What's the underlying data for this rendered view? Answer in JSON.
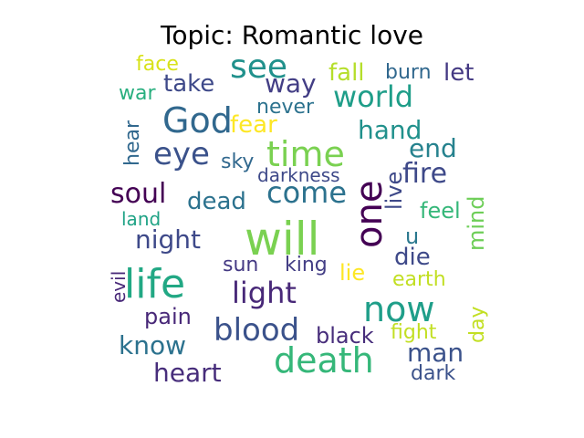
{
  "chart_data": {
    "type": "wordcloud",
    "title": "Topic: Romantic love",
    "words": [
      {
        "text": "will",
        "color": "#7ad151"
      },
      {
        "text": "one",
        "color": "#440154"
      },
      {
        "text": "life",
        "color": "#22a884"
      },
      {
        "text": "now",
        "color": "#1f9e89"
      },
      {
        "text": "death",
        "color": "#35b779"
      },
      {
        "text": "time",
        "color": "#7ad151"
      },
      {
        "text": "God",
        "color": "#31688e"
      },
      {
        "text": "see",
        "color": "#21918c"
      },
      {
        "text": "world",
        "color": "#1f9e89"
      },
      {
        "text": "blood",
        "color": "#3b528b"
      },
      {
        "text": "eye",
        "color": "#3b528b"
      },
      {
        "text": "fire",
        "color": "#3e4989"
      },
      {
        "text": "come",
        "color": "#2c728e"
      },
      {
        "text": "light",
        "color": "#482878"
      },
      {
        "text": "soul",
        "color": "#440154"
      },
      {
        "text": "end",
        "color": "#26828e"
      },
      {
        "text": "way",
        "color": "#433e85"
      },
      {
        "text": "hand",
        "color": "#21918c"
      },
      {
        "text": "night",
        "color": "#3e4989"
      },
      {
        "text": "take",
        "color": "#3e4989"
      },
      {
        "text": "know",
        "color": "#2c728e"
      },
      {
        "text": "heart",
        "color": "#472d7b"
      },
      {
        "text": "man",
        "color": "#3b528b"
      },
      {
        "text": "fall",
        "color": "#b5de2b"
      },
      {
        "text": "fear",
        "color": "#fde725"
      },
      {
        "text": "let",
        "color": "#443983"
      },
      {
        "text": "burn",
        "color": "#31688e"
      },
      {
        "text": "dead",
        "color": "#2c728e"
      },
      {
        "text": "live",
        "color": "#3e4989"
      },
      {
        "text": "mind",
        "color": "#6ece58"
      },
      {
        "text": "u",
        "color": "#2a788e"
      },
      {
        "text": "die",
        "color": "#3e4989"
      },
      {
        "text": "feel",
        "color": "#35b779"
      },
      {
        "text": "pain",
        "color": "#482878"
      },
      {
        "text": "king",
        "color": "#433e85"
      },
      {
        "text": "sun",
        "color": "#443983"
      },
      {
        "text": "lie",
        "color": "#fde725"
      },
      {
        "text": "earth",
        "color": "#c2df23"
      },
      {
        "text": "black",
        "color": "#472d7b"
      },
      {
        "text": "fight",
        "color": "#c2df23"
      },
      {
        "text": "dark",
        "color": "#3b528b"
      },
      {
        "text": "day",
        "color": "#c2df23"
      },
      {
        "text": "never",
        "color": "#2c728e"
      },
      {
        "text": "face",
        "color": "#d8e219"
      },
      {
        "text": "war",
        "color": "#29af7f"
      },
      {
        "text": "sky",
        "color": "#31688e"
      },
      {
        "text": "darkness",
        "color": "#3e4989"
      },
      {
        "text": "land",
        "color": "#20a386"
      },
      {
        "text": "hear",
        "color": "#31688e"
      },
      {
        "text": "evil",
        "color": "#482878"
      }
    ]
  }
}
